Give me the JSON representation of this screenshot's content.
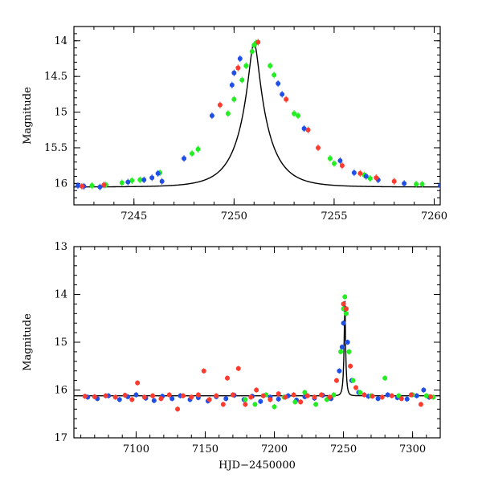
{
  "chart_data": [
    {
      "type": "scatter",
      "title": "",
      "xlabel": "",
      "ylabel": "Magnitude",
      "xlim": [
        7242,
        7260.3
      ],
      "ylim": [
        16.3,
        13.8
      ],
      "y_inverted": true,
      "x_ticks": [
        "7245",
        "7250",
        "7255",
        "7260"
      ],
      "y_ticks": [
        "14",
        "14.5",
        "15",
        "15.5",
        "16"
      ],
      "model": {
        "t0": 7251.0,
        "peak_mag": 14.03,
        "base_mag": 16.05,
        "scale": 1.45
      },
      "series": [
        {
          "color": "#22ee22",
          "points": [
            [
              7242.9,
              16.03
            ],
            [
              7243.6,
              16.02
            ],
            [
              7244.4,
              15.99
            ],
            [
              7244.9,
              15.96
            ],
            [
              7245.3,
              15.95
            ],
            [
              7246.3,
              15.85
            ],
            [
              7247.9,
              15.58
            ],
            [
              7248.2,
              15.52
            ],
            [
              7249.7,
              15.02
            ],
            [
              7250.0,
              14.82
            ],
            [
              7250.4,
              14.55
            ],
            [
              7250.6,
              14.35
            ],
            [
              7250.9,
              14.15
            ],
            [
              7251.0,
              14.06
            ],
            [
              7251.1,
              14.03
            ],
            [
              7251.8,
              14.35
            ],
            [
              7252.0,
              14.48
            ],
            [
              7253.0,
              15.02
            ],
            [
              7253.2,
              15.05
            ],
            [
              7254.8,
              15.65
            ],
            [
              7255.0,
              15.72
            ],
            [
              7256.5,
              15.88
            ],
            [
              7256.8,
              15.93
            ],
            [
              7259.1,
              16.01
            ],
            [
              7259.4,
              16.01
            ]
          ]
        },
        {
          "color": "#1f4fe6",
          "points": [
            [
              7242.2,
              16.03
            ],
            [
              7242.5,
              16.04
            ],
            [
              7243.3,
              16.05
            ],
            [
              7244.7,
              15.98
            ],
            [
              7245.5,
              15.95
            ],
            [
              7245.9,
              15.92
            ],
            [
              7246.2,
              15.86
            ],
            [
              7246.4,
              15.97
            ],
            [
              7247.5,
              15.65
            ],
            [
              7248.9,
              15.05
            ],
            [
              7249.9,
              14.62
            ],
            [
              7250.0,
              14.45
            ],
            [
              7250.3,
              14.25
            ],
            [
              7252.2,
              14.6
            ],
            [
              7252.4,
              14.75
            ],
            [
              7253.5,
              15.23
            ],
            [
              7255.3,
              15.68
            ],
            [
              7256.0,
              15.85
            ],
            [
              7256.6,
              15.9
            ],
            [
              7257.2,
              15.95
            ],
            [
              7258.5,
              16.0
            ],
            [
              7260.3,
              16.03
            ]
          ]
        },
        {
          "color": "#ff3b2f",
          "points": [
            [
              7242.4,
              16.04
            ],
            [
              7243.5,
              16.02
            ],
            [
              7249.3,
              14.9
            ],
            [
              7250.2,
              14.38
            ],
            [
              7251.2,
              14.02
            ],
            [
              7252.6,
              14.82
            ],
            [
              7253.7,
              15.25
            ],
            [
              7254.2,
              15.5
            ],
            [
              7255.4,
              15.75
            ],
            [
              7256.3,
              15.86
            ],
            [
              7257.1,
              15.92
            ],
            [
              7258.0,
              15.97
            ]
          ]
        }
      ]
    },
    {
      "type": "scatter",
      "title": "",
      "xlabel": "HJD−2450000",
      "ylabel": "Magnitude",
      "xlim": [
        7055,
        7320
      ],
      "ylim": [
        17,
        13
      ],
      "y_inverted": true,
      "x_ticks": [
        "7100",
        "7150",
        "7200",
        "7250",
        "7300"
      ],
      "y_ticks": [
        "13",
        "14",
        "15",
        "16",
        "17"
      ],
      "model": {
        "t0": 7251.0,
        "peak_mag": 14.03,
        "base_mag": 16.12,
        "scale": 1.45
      },
      "series": [
        {
          "color": "#1f4fe6",
          "points": [
            [
              7065,
              16.15
            ],
            [
              7072,
              16.18
            ],
            [
              7080,
              16.12
            ],
            [
              7088,
              16.2
            ],
            [
              7094,
              16.14
            ],
            [
              7100,
              16.1
            ],
            [
              7107,
              16.17
            ],
            [
              7113,
              16.22
            ],
            [
              7119,
              16.13
            ],
            [
              7126,
              16.18
            ],
            [
              7132,
              16.12
            ],
            [
              7139,
              16.2
            ],
            [
              7145,
              16.16
            ],
            [
              7152,
              16.23
            ],
            [
              7158,
              16.14
            ],
            [
              7165,
              16.18
            ],
            [
              7171,
              16.11
            ],
            [
              7178,
              16.2
            ],
            [
              7184,
              16.13
            ],
            [
              7190,
              16.24
            ],
            [
              7197,
              16.15
            ],
            [
              7203,
              16.19
            ],
            [
              7210,
              16.12
            ],
            [
              7216,
              16.21
            ],
            [
              7222,
              16.14
            ],
            [
              7229,
              16.17
            ],
            [
              7235,
              16.11
            ],
            [
              7241,
              16.18
            ],
            [
              7247,
              15.6
            ],
            [
              7249,
              15.1
            ],
            [
              7250,
              14.6
            ],
            [
              7253,
              15.0
            ],
            [
              7256,
              15.8
            ],
            [
              7261,
              16.05
            ],
            [
              7268,
              16.13
            ],
            [
              7275,
              16.18
            ],
            [
              7282,
              16.1
            ],
            [
              7289,
              16.16
            ],
            [
              7296,
              16.19
            ],
            [
              7303,
              16.12
            ],
            [
              7308,
              16.0
            ],
            [
              7312,
              16.15
            ]
          ]
        },
        {
          "color": "#22ee22",
          "points": [
            [
              7179,
              16.2
            ],
            [
              7186,
              16.3
            ],
            [
              7194,
              16.1
            ],
            [
              7200,
              16.35
            ],
            [
              7207,
              16.15
            ],
            [
              7215,
              16.25
            ],
            [
              7222,
              16.05
            ],
            [
              7230,
              16.3
            ],
            [
              7238,
              16.2
            ],
            [
              7243,
              16.1
            ],
            [
              7248,
              15.2
            ],
            [
              7250,
              14.3
            ],
            [
              7251,
              14.05
            ],
            [
              7252,
              14.4
            ],
            [
              7254,
              15.2
            ],
            [
              7257,
              15.8
            ],
            [
              7262,
              16.05
            ],
            [
              7270,
              16.12
            ],
            [
              7280,
              15.75
            ],
            [
              7290,
              16.12
            ],
            [
              7300,
              16.1
            ],
            [
              7310,
              16.12
            ],
            [
              7315,
              16.15
            ]
          ]
        },
        {
          "color": "#ff3b2f",
          "points": [
            [
              7063,
              16.13
            ],
            [
              7070,
              16.14
            ],
            [
              7078,
              16.12
            ],
            [
              7085,
              16.15
            ],
            [
              7092,
              16.11
            ],
            [
              7097,
              16.2
            ],
            [
              7101,
              15.85
            ],
            [
              7106,
              16.15
            ],
            [
              7112,
              16.12
            ],
            [
              7118,
              16.18
            ],
            [
              7124,
              16.1
            ],
            [
              7130,
              16.4
            ],
            [
              7134,
              16.12
            ],
            [
              7140,
              16.15
            ],
            [
              7145,
              16.1
            ],
            [
              7149,
              15.6
            ],
            [
              7153,
              16.2
            ],
            [
              7158,
              16.12
            ],
            [
              7163,
              16.3
            ],
            [
              7166,
              15.75
            ],
            [
              7170,
              16.1
            ],
            [
              7174,
              15.55
            ],
            [
              7179,
              16.3
            ],
            [
              7183,
              16.15
            ],
            [
              7187,
              16.0
            ],
            [
              7192,
              16.12
            ],
            [
              7197,
              16.2
            ],
            [
              7203,
              16.08
            ],
            [
              7208,
              16.15
            ],
            [
              7214,
              16.1
            ],
            [
              7219,
              16.25
            ],
            [
              7224,
              16.12
            ],
            [
              7229,
              16.15
            ],
            [
              7234,
              16.1
            ],
            [
              7240,
              16.15
            ],
            [
              7245,
              15.8
            ],
            [
              7250,
              14.2
            ],
            [
              7252,
              14.3
            ],
            [
              7255,
              15.5
            ],
            [
              7259,
              15.95
            ],
            [
              7265,
              16.1
            ],
            [
              7271,
              16.13
            ],
            [
              7278,
              16.15
            ],
            [
              7285,
              16.12
            ],
            [
              7292,
              16.18
            ],
            [
              7299,
              16.1
            ],
            [
              7306,
              16.3
            ],
            [
              7313,
              16.14
            ]
          ]
        }
      ]
    }
  ]
}
